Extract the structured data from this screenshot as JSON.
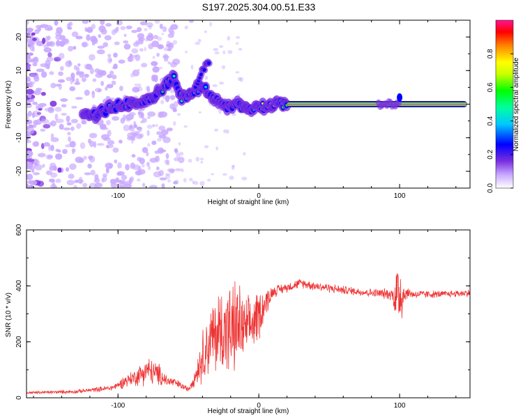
{
  "figure_title": "S197.2025.304.00.51.E33",
  "chart_data": [
    {
      "id": "spectrogram",
      "type": "heatmap",
      "title": "",
      "xlabel": "Height of straight line (km)",
      "ylabel": "Frequency (Hz)",
      "xlim": [
        -165,
        150
      ],
      "ylim": [
        -25,
        25
      ],
      "x_ticks": [
        -100,
        0,
        100
      ],
      "x_tick_labels": [
        "-100",
        "0",
        "100"
      ],
      "y_ticks": [
        -20,
        -10,
        0,
        10,
        20
      ],
      "y_tick_labels": [
        "-20",
        "-10",
        "0",
        "10",
        "20"
      ],
      "colorbar": {
        "label": "Normalized spectral amplitude",
        "range": [
          0,
          1
        ],
        "ticks": [
          0.0,
          0.2,
          0.4,
          0.6,
          0.8
        ],
        "tick_labels": [
          "0.0",
          "0.2",
          "0.4",
          "0.6",
          "0.8"
        ],
        "colors": [
          "#ffffff",
          "#7b2fe0",
          "#0000ff",
          "#00e0ff",
          "#00ff40",
          "#ffff00",
          "#ff8000",
          "#ff0000",
          "#ff1493"
        ]
      },
      "ridge_path": {
        "description": "signal ridge frequency vs height",
        "x": [
          -125,
          -115,
          -105,
          -95,
          -85,
          -75,
          -70,
          -65,
          -60,
          -55,
          -50,
          -45,
          -40,
          -35,
          -30,
          -25,
          -20,
          -15,
          -10,
          -5,
          0,
          5,
          10,
          15,
          20,
          150
        ],
        "y": [
          -4,
          -3,
          -1,
          0,
          1,
          2,
          4,
          6,
          8,
          2,
          3,
          4,
          5,
          3,
          1,
          -1,
          -1,
          0,
          -1,
          -1,
          0,
          -1,
          0,
          0,
          0,
          0
        ]
      },
      "branch_path": {
        "x": [
          -45,
          -40,
          -35
        ],
        "y": [
          5,
          10,
          13
        ]
      },
      "steady_line": {
        "x_start": 20,
        "x_end": 148,
        "frequency": 0,
        "amplitude": 0.95
      },
      "secondary_burst": {
        "x_start": 85,
        "x_end": 100,
        "frequency": 0
      }
    },
    {
      "id": "snr",
      "type": "line",
      "title": "",
      "xlabel": "Height of straight line (km)",
      "ylabel": "SNR (10 * v/v)",
      "xlim": [
        -165,
        150
      ],
      "ylim": [
        0,
        600
      ],
      "x_ticks": [
        -100,
        0,
        100
      ],
      "x_tick_labels": [
        "-100",
        "0",
        "100"
      ],
      "y_ticks": [
        0,
        200,
        400,
        600
      ],
      "y_tick_labels": [
        "0",
        "200",
        "400",
        "600"
      ],
      "line_color": "#ee3333",
      "envelope": {
        "x": [
          -165,
          -130,
          -105,
          -100,
          -95,
          -90,
          -85,
          -80,
          -75,
          -70,
          -65,
          -60,
          -50,
          -45,
          -40,
          -35,
          -30,
          -25,
          -20,
          -15,
          -10,
          -5,
          0,
          5,
          10,
          20,
          30,
          40,
          60,
          80,
          95,
          97,
          100,
          102,
          105,
          110,
          130,
          150
        ],
        "mean": [
          18,
          22,
          35,
          45,
          60,
          70,
          80,
          100,
          90,
          80,
          60,
          55,
          30,
          80,
          150,
          200,
          230,
          250,
          230,
          260,
          240,
          260,
          300,
          340,
          380,
          395,
          410,
          400,
          385,
          375,
          370,
          360,
          380,
          370,
          375,
          370,
          370,
          375
        ],
        "amp": [
          6,
          8,
          12,
          15,
          30,
          30,
          45,
          60,
          55,
          45,
          25,
          20,
          10,
          40,
          110,
          140,
          180,
          200,
          200,
          200,
          130,
          120,
          110,
          60,
          25,
          20,
          20,
          20,
          18,
          18,
          25,
          120,
          200,
          100,
          25,
          18,
          15,
          15
        ]
      }
    }
  ]
}
